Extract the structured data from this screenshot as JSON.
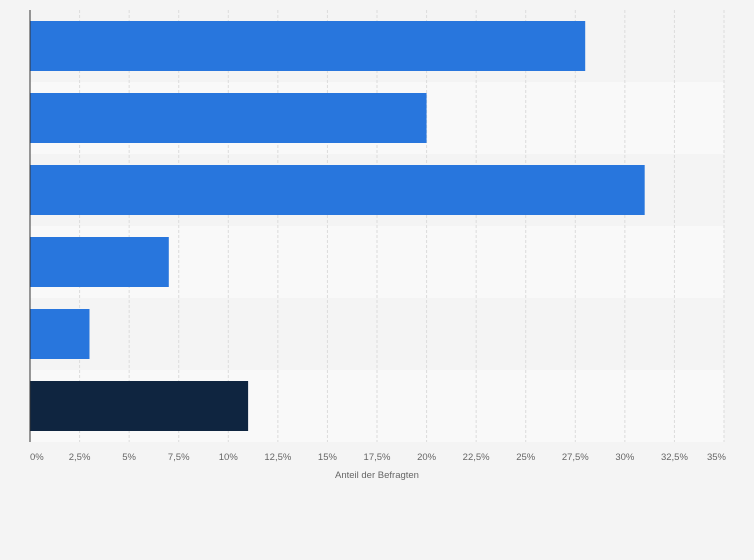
{
  "chart_data": {
    "type": "bar",
    "orientation": "horizontal",
    "title": "",
    "xlabel": "Anteil der Befragten",
    "ylabel": "",
    "categories": [
      "",
      "",
      "",
      "",
      "",
      ""
    ],
    "values": [
      28,
      20,
      31,
      7,
      3,
      11
    ],
    "xlim": [
      0,
      35
    ],
    "ticks": [
      0,
      2.5,
      5,
      7.5,
      10,
      12.5,
      15,
      17.5,
      20,
      22.5,
      25,
      27.5,
      30,
      32.5,
      35
    ],
    "tick_labels": [
      "0%",
      "2,5%",
      "5%",
      "7,5%",
      "10%",
      "12,5%",
      "15%",
      "17,5%",
      "20%",
      "22,5%",
      "25%",
      "27,5%",
      "30%",
      "32,5%",
      "35%"
    ],
    "grid": true,
    "legend": "none"
  },
  "colors": {
    "bar": "#2876dd",
    "bar_highlight": "#0f2540",
    "band_dark": "#f4f4f4",
    "band_light": "#f9f9f9",
    "grid": "#dcdcdc",
    "axis": "#333333"
  },
  "highlight_index": 5
}
